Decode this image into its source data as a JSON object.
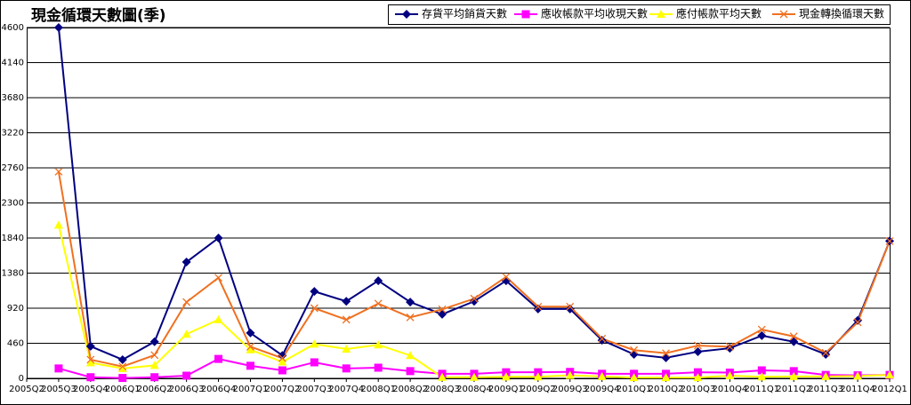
{
  "chart_data": {
    "type": "line",
    "title": "現金循環天數圖(季)",
    "categories": [
      "2005Q2",
      "2005Q3",
      "2005Q4",
      "2006Q1",
      "2006Q2",
      "2006Q3",
      "2006Q4",
      "2007Q1",
      "2007Q2",
      "2007Q3",
      "2007Q4",
      "2008Q1",
      "2008Q2",
      "2008Q3",
      "2008Q4",
      "2009Q1",
      "2009Q2",
      "2009Q3",
      "2009Q4",
      "2010Q1",
      "2010Q2",
      "2010Q3",
      "2010Q4",
      "2011Q1",
      "2011Q2",
      "2011Q3",
      "2011Q4",
      "2012Q1"
    ],
    "series": [
      {
        "name": "存貨平均銷貨天數",
        "color": "#000080",
        "marker": "diamond",
        "values": [
          null,
          4600,
          420,
          245,
          480,
          1525,
          1840,
          595,
          300,
          1140,
          1010,
          1280,
          1000,
          840,
          1010,
          1280,
          910,
          910,
          500,
          315,
          270,
          350,
          395,
          560,
          480,
          315,
          760,
          1800
        ]
      },
      {
        "name": "應收帳款平均收現天數",
        "color": "#ff00ff",
        "marker": "square",
        "values": [
          null,
          130,
          15,
          5,
          15,
          35,
          255,
          165,
          105,
          210,
          130,
          140,
          95,
          60,
          60,
          80,
          80,
          85,
          60,
          60,
          60,
          80,
          75,
          105,
          95,
          45,
          40,
          45
        ]
      },
      {
        "name": "應付帳款平均天數",
        "color": "#ffff00",
        "marker": "triangle",
        "values": [
          null,
          2010,
          205,
          130,
          170,
          580,
          770,
          375,
          215,
          450,
          385,
          440,
          300,
          15,
          15,
          20,
          20,
          40,
          25,
          10,
          10,
          10,
          35,
          20,
          25,
          25,
          30,
          45
        ]
      },
      {
        "name": "現金轉換循環天數",
        "color": "#f07020",
        "marker": "cross",
        "values": [
          null,
          2710,
          245,
          155,
          305,
          1000,
          1320,
          415,
          265,
          920,
          770,
          980,
          800,
          905,
          1045,
          1330,
          940,
          940,
          520,
          370,
          330,
          430,
          415,
          640,
          550,
          335,
          735,
          1800
        ]
      }
    ],
    "ylim": [
      0,
      4600
    ],
    "yticks": [
      0,
      460,
      920,
      1380,
      1840,
      2300,
      2760,
      3220,
      3680,
      4140,
      4600
    ],
    "grid": true,
    "legend": "top-right"
  }
}
